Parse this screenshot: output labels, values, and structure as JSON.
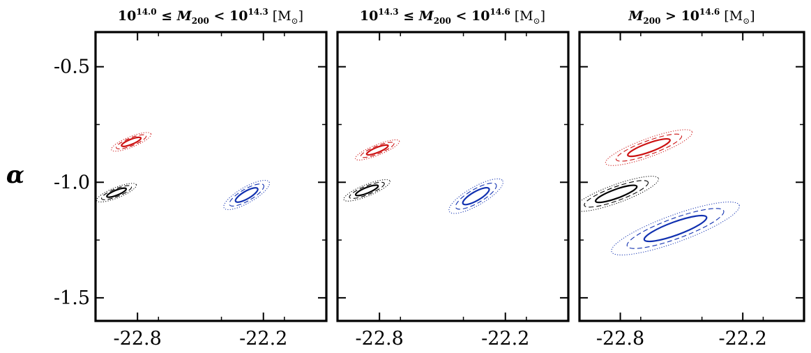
{
  "chart_data": [
    {
      "type": "contour",
      "title": "10^14.0 ≤ M200 < 10^14.3 [M⊙]",
      "xlabel": "",
      "ylabel": "α",
      "xlim": [
        -23.0,
        -21.9
      ],
      "ylim": [
        -1.6,
        -0.35
      ],
      "xticks": [
        -22.8,
        -22.2
      ],
      "yticks": [
        -0.5,
        -1.0,
        -1.5
      ],
      "ellipses": [
        {
          "color": "#cc1111",
          "cx": -22.83,
          "cy": -0.825,
          "sx": 0.09,
          "sy": 0.02,
          "angle": 22
        },
        {
          "color": "#000000",
          "cx": -22.9,
          "cy": -1.045,
          "sx": 0.09,
          "sy": 0.02,
          "angle": 22
        },
        {
          "color": "#1030b0",
          "cx": -22.28,
          "cy": -1.055,
          "sx": 0.11,
          "sy": 0.03,
          "angle": 30
        }
      ]
    },
    {
      "type": "contour",
      "title": "10^14.3 ≤ M200 < 10^14.6 [M⊙]",
      "xlabel": "",
      "ylabel": "",
      "xlim": [
        -23.0,
        -21.9
      ],
      "ylim": [
        -1.6,
        -0.35
      ],
      "xticks": [
        -22.8,
        -22.2
      ],
      "yticks": [
        -0.5,
        -1.0,
        -1.5
      ],
      "ellipses": [
        {
          "color": "#cc1111",
          "cx": -22.81,
          "cy": -0.86,
          "sx": 0.1,
          "sy": 0.02,
          "angle": 22
        },
        {
          "color": "#000000",
          "cx": -22.86,
          "cy": -1.035,
          "sx": 0.105,
          "sy": 0.022,
          "angle": 22
        },
        {
          "color": "#1030b0",
          "cx": -22.34,
          "cy": -1.06,
          "sx": 0.13,
          "sy": 0.035,
          "angle": 30
        }
      ]
    },
    {
      "type": "contour",
      "title": "M200 > 10^14.6 [M⊙]",
      "xlabel": "",
      "ylabel": "",
      "xlim": [
        -23.0,
        -21.9
      ],
      "ylim": [
        -1.6,
        -0.35
      ],
      "xticks": [
        -22.8,
        -22.2
      ],
      "yticks": [
        -0.5,
        -1.0,
        -1.5
      ],
      "ellipses": [
        {
          "color": "#cc1111",
          "cx": -22.66,
          "cy": -0.85,
          "sx": 0.2,
          "sy": 0.035,
          "angle": 20
        },
        {
          "color": "#000000",
          "cx": -22.82,
          "cy": -1.05,
          "sx": 0.195,
          "sy": 0.035,
          "angle": 20
        },
        {
          "color": "#1030b0",
          "cx": -22.53,
          "cy": -1.2,
          "sx": 0.295,
          "sy": 0.052,
          "angle": 20
        }
      ]
    }
  ],
  "contour_scale": {
    "solid": 1.0,
    "dashed": 1.55,
    "dotted": 2.05
  }
}
